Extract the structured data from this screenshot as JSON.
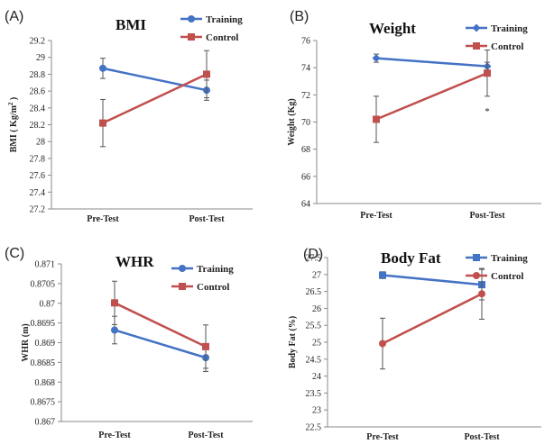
{
  "colors": {
    "training": "#4472c4",
    "control": "#c0504d",
    "axis": "#8a8a8a",
    "errorbar": "#555555"
  },
  "chart_data": [
    {
      "panel": "(A)",
      "type": "line",
      "title": "BMI",
      "ylabel": "BMI ( Kg/m",
      "ylabel_sup": "2",
      "ylabel_tail": " )",
      "categories": [
        "Pre-Test",
        "Post-Test"
      ],
      "ylim": [
        27.2,
        29.2
      ],
      "yticks": [
        27.2,
        27.4,
        27.6,
        27.8,
        28,
        28.2,
        28.4,
        28.6,
        28.8,
        29,
        29.2
      ],
      "ytick_labels": [
        "27.2",
        "27.4",
        "27.6",
        "27.8",
        "28",
        "28.2",
        "28.4",
        "28.6",
        "28.8",
        "29",
        "29.2"
      ],
      "grid": false,
      "legend_position": "top-right",
      "annotation": "",
      "series": [
        {
          "name": "Training",
          "color": "#4472c4",
          "marker": "circle",
          "values": [
            28.87,
            28.61
          ],
          "errors": [
            0.12,
            0.12
          ]
        },
        {
          "name": "Control",
          "color": "#c0504d",
          "marker": "square",
          "values": [
            28.22,
            28.8
          ],
          "errors": [
            0.28,
            0.28
          ]
        }
      ]
    },
    {
      "panel": "(B)",
      "type": "line",
      "title": "Weight",
      "ylabel": "Weight (Kg)",
      "ylabel_sup": "",
      "ylabel_tail": "",
      "categories": [
        "Pre-Test",
        "Post-Test"
      ],
      "ylim": [
        64,
        76
      ],
      "yticks": [
        64,
        66,
        68,
        70,
        72,
        74,
        76
      ],
      "ytick_labels": [
        "64",
        "66",
        "68",
        "70",
        "72",
        "74",
        "76"
      ],
      "grid": false,
      "legend_position": "top-right",
      "annotation": "*",
      "series": [
        {
          "name": "Training",
          "color": "#4472c4",
          "marker": "diamond",
          "values": [
            74.7,
            74.1
          ],
          "errors": [
            0.3,
            0.3
          ]
        },
        {
          "name": "Control",
          "color": "#c0504d",
          "marker": "square",
          "values": [
            70.2,
            73.6
          ],
          "errors": [
            1.7,
            1.7
          ]
        }
      ]
    },
    {
      "panel": "(C)",
      "type": "line",
      "title": "WHR",
      "ylabel": "WHR (m)",
      "ylabel_sup": "",
      "ylabel_tail": "",
      "categories": [
        "Pre-Test",
        "Post-Test"
      ],
      "ylim": [
        0.867,
        0.871
      ],
      "yticks": [
        0.867,
        0.8675,
        0.868,
        0.8685,
        0.869,
        0.8695,
        0.87,
        0.8705,
        0.871
      ],
      "ytick_labels": [
        "0.867",
        "0.8675",
        "0.868",
        "0.8685",
        "0.869",
        "0.8695",
        "0.87",
        "0.8705",
        "0.871"
      ],
      "grid": false,
      "legend_position": "top-right",
      "annotation": "",
      "series": [
        {
          "name": "Training",
          "color": "#4472c4",
          "marker": "circle",
          "values": [
            0.86932,
            0.86862
          ],
          "errors": [
            0.00035,
            0.00035
          ]
        },
        {
          "name": "Control",
          "color": "#c0504d",
          "marker": "square",
          "values": [
            0.87001,
            0.8689
          ],
          "errors": [
            0.00055,
            0.00055
          ]
        }
      ]
    },
    {
      "panel": "(D)",
      "type": "line",
      "title": "Body Fat",
      "ylabel": "Body Fat (%)",
      "ylabel_sup": "",
      "ylabel_tail": "",
      "categories": [
        "Pre-Test",
        "Post-Test"
      ],
      "ylim": [
        22.5,
        27.5
      ],
      "yticks": [
        22.5,
        23,
        23.5,
        24,
        24.5,
        25,
        25.5,
        26,
        26.5,
        27,
        27.5
      ],
      "ytick_labels": [
        "22.5",
        "23",
        "23.5",
        "24",
        "24.5",
        "25",
        "25.5",
        "26",
        "26.5",
        "27",
        "27.5"
      ],
      "grid": false,
      "legend_position": "top-right",
      "annotation": "",
      "series": [
        {
          "name": "Training",
          "color": "#4472c4",
          "marker": "square",
          "values": [
            26.98,
            26.7
          ],
          "errors": [
            0.1,
            0.45
          ]
        },
        {
          "name": "Control",
          "color": "#c0504d",
          "marker": "circle",
          "values": [
            24.96,
            26.43
          ],
          "errors": [
            0.75,
            0.75
          ]
        }
      ]
    }
  ]
}
